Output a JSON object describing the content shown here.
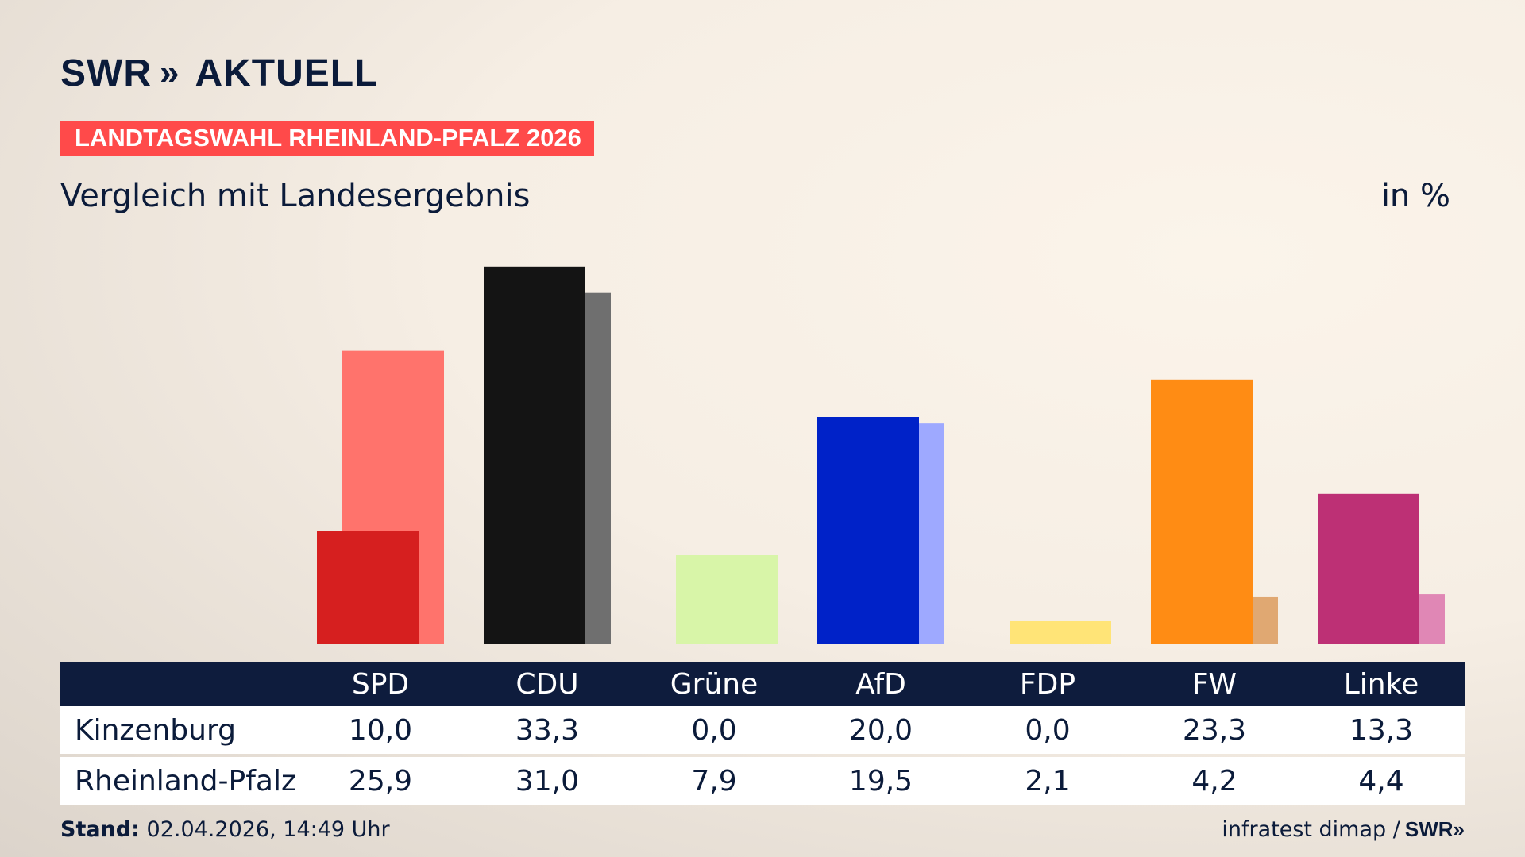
{
  "header": {
    "logo_brand": "SWR",
    "logo_chevrons": "»",
    "logo_name": "AKTUELL",
    "banner": "LANDTAGSWAHL RHEINLAND-PFALZ 2026",
    "subtitle": "Vergleich mit Landesergebnis",
    "unit": "in %"
  },
  "chart_data": {
    "type": "bar",
    "categories": [
      "SPD",
      "CDU",
      "Grüne",
      "AfD",
      "FDP",
      "FW",
      "Linke"
    ],
    "series": [
      {
        "name": "Kinzenburg",
        "values": [
          10.0,
          33.3,
          0.0,
          20.0,
          0.0,
          23.3,
          13.3
        ]
      },
      {
        "name": "Rheinland-Pfalz",
        "values": [
          25.9,
          31.0,
          7.9,
          19.5,
          2.1,
          4.2,
          4.4
        ]
      }
    ],
    "ylim": [
      0,
      35
    ],
    "colors": {
      "primary": [
        "#d61f1f",
        "#141414",
        "#4aa52e",
        "#0022c8",
        "#ffe000",
        "#ff8c14",
        "#bd3075"
      ],
      "secondary": [
        "#ff736c",
        "#6f6f6f",
        "#d8f5a8",
        "#9ea9ff",
        "#ffe477",
        "#e0a872",
        "#e087b5"
      ]
    }
  },
  "table": {
    "headers": [
      "SPD",
      "CDU",
      "Grüne",
      "AfD",
      "FDP",
      "FW",
      "Linke"
    ],
    "rows": [
      {
        "label": "Kinzenburg",
        "values": [
          "10,0",
          "33,3",
          "0,0",
          "20,0",
          "0,0",
          "23,3",
          "13,3"
        ]
      },
      {
        "label": "Rheinland-Pfalz",
        "values": [
          "25,9",
          "31,0",
          "7,9",
          "19,5",
          "2,1",
          "4,2",
          "4,4"
        ]
      }
    ]
  },
  "footer": {
    "stand_label": "Stand:",
    "stand_value": "02.04.2026, 14:49 Uhr",
    "source": "infratest dimap /",
    "source_logo": "SWR",
    "source_chevrons": "»"
  }
}
